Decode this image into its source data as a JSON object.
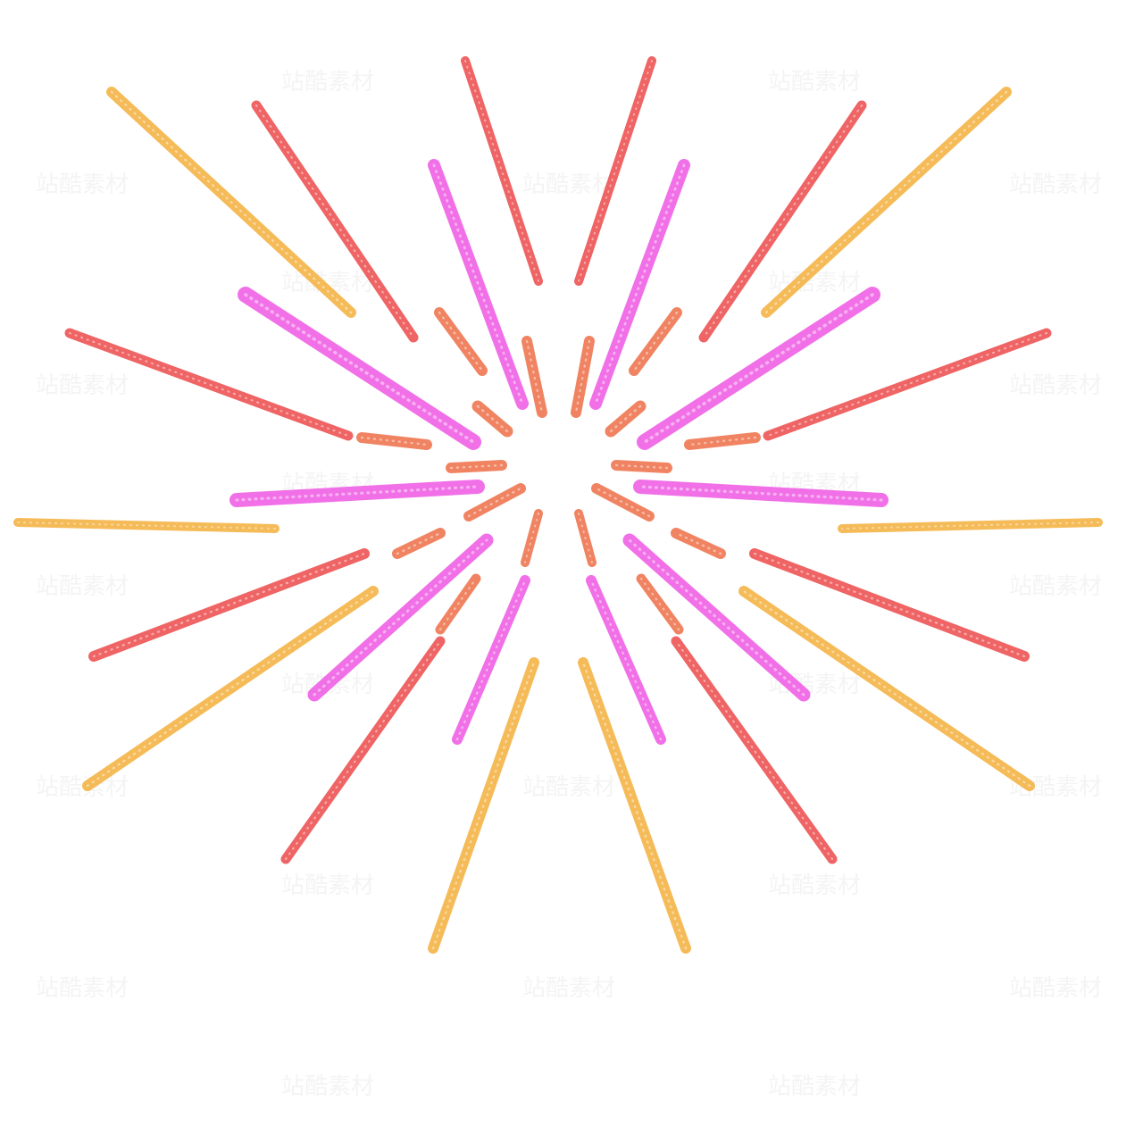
{
  "image": {
    "subject": "fireworks-burst",
    "colors": {
      "yellow": "#f5b64a",
      "red": "#ee5757",
      "magenta": "#f064e6",
      "orange": "#ef7a55"
    }
  },
  "watermark": {
    "text": "站酷素材"
  }
}
